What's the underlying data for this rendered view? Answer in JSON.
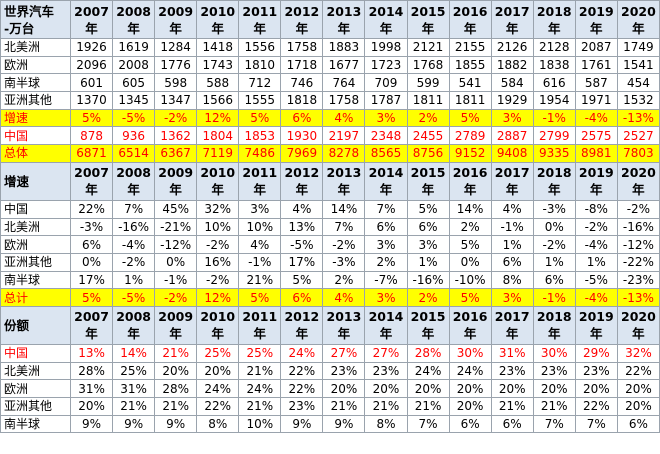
{
  "sections": [
    {
      "header": {
        "label": [
          "世界汽车",
          "-万台"
        ],
        "years": [
          "2007",
          "2008",
          "2009",
          "2010",
          "2011",
          "2012",
          "2013",
          "2014",
          "2015",
          "2016",
          "2017",
          "2018",
          "2019",
          "2020"
        ],
        "unit": "年"
      },
      "rows": [
        {
          "label": "北美洲",
          "values": [
            "1926",
            "1619",
            "1284",
            "1418",
            "1556",
            "1758",
            "1883",
            "1998",
            "2121",
            "2155",
            "2126",
            "2128",
            "2087",
            "1749"
          ]
        },
        {
          "label": "欧洲",
          "values": [
            "2096",
            "2008",
            "1776",
            "1743",
            "1810",
            "1718",
            "1677",
            "1723",
            "1768",
            "1855",
            "1882",
            "1838",
            "1761",
            "1541"
          ]
        },
        {
          "label": "南半球",
          "values": [
            "601",
            "605",
            "598",
            "588",
            "712",
            "746",
            "764",
            "709",
            "599",
            "541",
            "584",
            "616",
            "587",
            "454"
          ]
        },
        {
          "label": "亚洲其他",
          "values": [
            "1370",
            "1345",
            "1347",
            "1566",
            "1555",
            "1818",
            "1758",
            "1787",
            "1811",
            "1811",
            "1929",
            "1954",
            "1971",
            "1532"
          ]
        },
        {
          "label": "增速",
          "highlight": "#ffff00",
          "text_color": "#ff0000",
          "values": [
            "5%",
            "-5%",
            "-2%",
            "12%",
            "5%",
            "6%",
            "4%",
            "3%",
            "2%",
            "5%",
            "3%",
            "-1%",
            "-4%",
            "-13%"
          ]
        },
        {
          "label": "中国",
          "text_color": "#ff0000",
          "values": [
            "878",
            "936",
            "1362",
            "1804",
            "1853",
            "1930",
            "2197",
            "2348",
            "2455",
            "2789",
            "2887",
            "2799",
            "2575",
            "2527"
          ]
        },
        {
          "label": "总体",
          "highlight": "#ffff00",
          "text_color": "#ff0000",
          "values": [
            "6871",
            "6514",
            "6367",
            "7119",
            "7486",
            "7969",
            "8278",
            "8565",
            "8756",
            "9152",
            "9408",
            "9335",
            "8981",
            "7803"
          ]
        }
      ]
    },
    {
      "header": {
        "label": [
          "增速"
        ],
        "years": [
          "2007",
          "2008",
          "2009",
          "2010",
          "2011",
          "2012",
          "2013",
          "2014",
          "2015",
          "2016",
          "2017",
          "2018",
          "2019",
          "2020"
        ],
        "unit": "年"
      },
      "rows": [
        {
          "label": "中国",
          "values": [
            "22%",
            "7%",
            "45%",
            "32%",
            "3%",
            "4%",
            "14%",
            "7%",
            "5%",
            "14%",
            "4%",
            "-3%",
            "-8%",
            "-2%"
          ]
        },
        {
          "label": "北美洲",
          "values": [
            "-3%",
            "-16%",
            "-21%",
            "10%",
            "10%",
            "13%",
            "7%",
            "6%",
            "6%",
            "2%",
            "-1%",
            "0%",
            "-2%",
            "-16%"
          ]
        },
        {
          "label": "欧洲",
          "values": [
            "6%",
            "-4%",
            "-12%",
            "-2%",
            "4%",
            "-5%",
            "-2%",
            "3%",
            "3%",
            "5%",
            "1%",
            "-2%",
            "-4%",
            "-12%"
          ]
        },
        {
          "label": "亚洲其他",
          "values": [
            "0%",
            "-2%",
            "0%",
            "16%",
            "-1%",
            "17%",
            "-3%",
            "2%",
            "1%",
            "0%",
            "6%",
            "1%",
            "1%",
            "-22%"
          ]
        },
        {
          "label": "南半球",
          "values": [
            "17%",
            "1%",
            "-1%",
            "-2%",
            "21%",
            "5%",
            "2%",
            "-7%",
            "-16%",
            "-10%",
            "8%",
            "6%",
            "-5%",
            "-23%"
          ]
        },
        {
          "label": "总计",
          "highlight": "#ffff00",
          "text_color": "#ff0000",
          "values": [
            "5%",
            "-5%",
            "-2%",
            "12%",
            "5%",
            "6%",
            "4%",
            "3%",
            "2%",
            "5%",
            "3%",
            "-1%",
            "-4%",
            "-13%"
          ]
        }
      ]
    },
    {
      "header": {
        "label": [
          "份额"
        ],
        "years": [
          "2007",
          "2008",
          "2009",
          "2010",
          "2011",
          "2012",
          "2013",
          "2014",
          "2015",
          "2016",
          "2017",
          "2018",
          "2019",
          "2020"
        ],
        "unit": "年"
      },
      "rows": [
        {
          "label": "中国",
          "text_color": "#ff0000",
          "values": [
            "13%",
            "14%",
            "21%",
            "25%",
            "25%",
            "24%",
            "27%",
            "27%",
            "28%",
            "30%",
            "31%",
            "30%",
            "29%",
            "32%"
          ]
        },
        {
          "label": "北美洲",
          "values": [
            "28%",
            "25%",
            "20%",
            "20%",
            "21%",
            "22%",
            "23%",
            "23%",
            "24%",
            "24%",
            "23%",
            "23%",
            "23%",
            "22%"
          ]
        },
        {
          "label": "欧洲",
          "values": [
            "31%",
            "31%",
            "28%",
            "24%",
            "24%",
            "22%",
            "20%",
            "20%",
            "20%",
            "20%",
            "20%",
            "20%",
            "20%",
            "20%"
          ]
        },
        {
          "label": "亚洲其他",
          "values": [
            "20%",
            "21%",
            "21%",
            "22%",
            "21%",
            "23%",
            "21%",
            "21%",
            "21%",
            "20%",
            "21%",
            "21%",
            "22%",
            "20%"
          ]
        },
        {
          "label": "南半球",
          "values": [
            "9%",
            "9%",
            "9%",
            "8%",
            "10%",
            "9%",
            "9%",
            "8%",
            "7%",
            "6%",
            "6%",
            "7%",
            "7%",
            "6%"
          ]
        }
      ]
    }
  ]
}
